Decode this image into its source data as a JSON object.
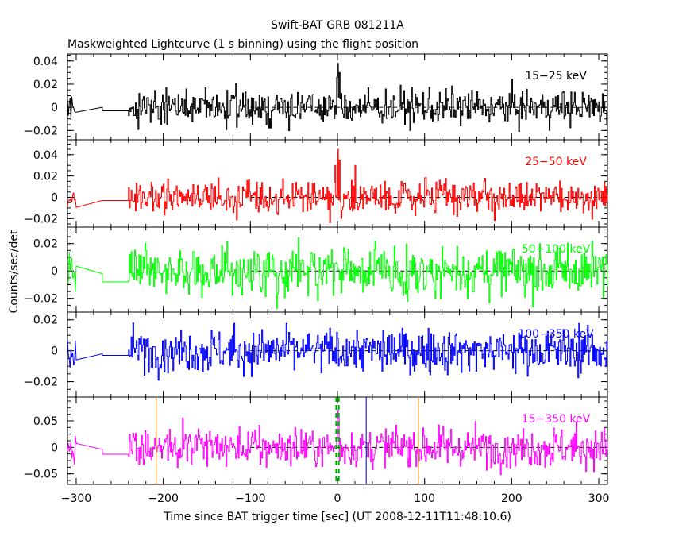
{
  "chart_data": {
    "type": "line",
    "title": "Swift-BAT GRB 081211A",
    "subtitle": "Maskweighted Lightcurve (1 s binning) using the flight position",
    "xlabel": "Time since BAT trigger time [sec] (UT 2008-12-11T11:48:10.6)",
    "ylabel": "Counts/sec/det",
    "xlim": [
      -310,
      310
    ],
    "x_ticks": [
      -300,
      -200,
      -100,
      0,
      100,
      200,
      300
    ],
    "x_tick_labels": [
      "−300",
      "−200",
      "−100",
      "0",
      "100",
      "200",
      "300"
    ],
    "panels": [
      {
        "name": "15−25 keV",
        "color": "#000000",
        "ylim": [
          -0.028,
          0.046
        ],
        "y_ticks": [
          -0.02,
          0,
          0.02,
          0.04
        ],
        "y_tick_labels": [
          "−0.02",
          "0",
          "0.02",
          "0.04"
        ],
        "noise_sigma": 0.0075,
        "pre_segment": [
          [
            -310,
            0.0
          ],
          [
            -270,
            0.0
          ],
          [
            -270,
            -0.003
          ],
          [
            -240,
            -0.003
          ]
        ],
        "peaks": [
          [
            0,
            0.038
          ],
          [
            2,
            0.03
          ],
          [
            -1,
            0.026
          ]
        ]
      },
      {
        "name": "25−50 keV",
        "color": "#ff0000",
        "ylim": [
          -0.028,
          0.054
        ],
        "y_ticks": [
          -0.02,
          0,
          0.02,
          0.04
        ],
        "y_tick_labels": [
          "−0.02",
          "0",
          "0.02",
          "0.04"
        ],
        "noise_sigma": 0.0075,
        "pre_segment": [
          [
            -310,
            -0.003
          ],
          [
            -270,
            -0.003
          ],
          [
            -270,
            -0.003
          ],
          [
            -240,
            -0.003
          ]
        ],
        "peaks": [
          [
            0,
            0.045
          ],
          [
            2,
            0.035
          ],
          [
            -3,
            0.03
          ],
          [
            20,
            0.03
          ]
        ]
      },
      {
        "name": "50−100 keV",
        "color": "#00ff00",
        "ylim": [
          -0.03,
          0.032
        ],
        "y_ticks": [
          -0.02,
          0,
          0.02
        ],
        "y_tick_labels": [
          "−0.02",
          "0",
          "0.02"
        ],
        "noise_sigma": 0.009,
        "pre_segment": [
          [
            -310,
            -0.002
          ],
          [
            -270,
            -0.002
          ],
          [
            -270,
            -0.008
          ],
          [
            -240,
            -0.008
          ]
        ],
        "peaks": []
      },
      {
        "name": "100−350 keV",
        "color": "#0000ff",
        "ylim": [
          -0.03,
          0.025
        ],
        "y_ticks": [
          -0.02,
          0,
          0.02
        ],
        "y_tick_labels": [
          "−0.02",
          "0",
          "0.02"
        ],
        "noise_sigma": 0.007,
        "pre_segment": [
          [
            -310,
            -0.002
          ],
          [
            -270,
            -0.002
          ],
          [
            -270,
            -0.003
          ],
          [
            -240,
            -0.003
          ]
        ],
        "peaks": []
      },
      {
        "name": "15−350 keV",
        "color": "#ff00ff",
        "ylim": [
          -0.07,
          0.095
        ],
        "y_ticks": [
          -0.05,
          0,
          0.05
        ],
        "y_tick_labels": [
          "−0.05",
          "0",
          "0.05"
        ],
        "noise_sigma": 0.019,
        "pre_segment": [
          [
            -310,
            -0.004
          ],
          [
            -270,
            -0.004
          ],
          [
            -270,
            -0.013
          ],
          [
            -240,
            -0.013
          ]
        ],
        "peaks": [
          [
            0,
            0.07
          ],
          [
            1,
            0.055
          ]
        ],
        "markers": [
          {
            "x": -208,
            "color": "#ff8c00",
            "style": "solid"
          },
          {
            "x": 93,
            "color": "#ff8c00",
            "style": "solid"
          },
          {
            "x": 33,
            "color": "#0000aa",
            "style": "solid"
          },
          {
            "x": -1.5,
            "color": "#00aa00",
            "style": "dashed"
          },
          {
            "x": 1.5,
            "color": "#00aa00",
            "style": "dashed"
          }
        ]
      }
    ]
  }
}
